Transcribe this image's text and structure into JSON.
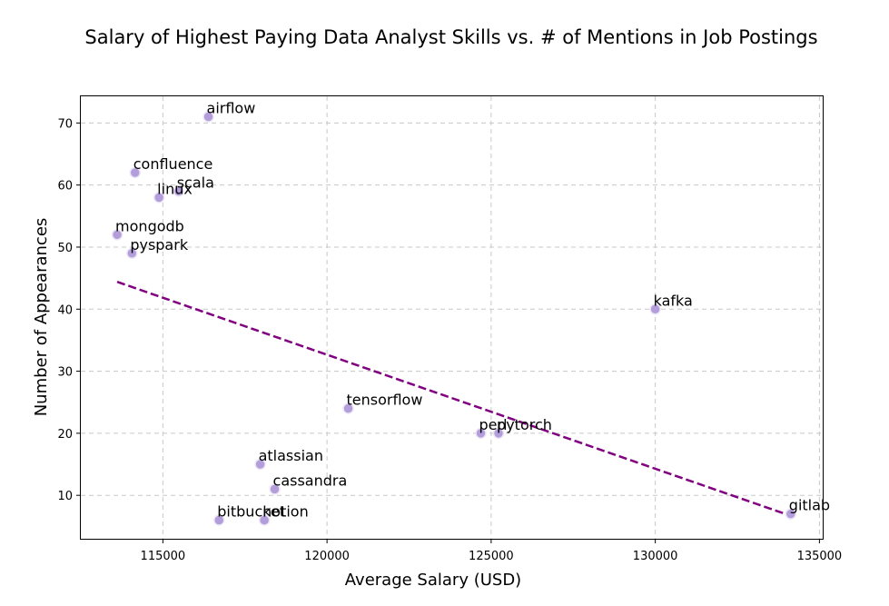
{
  "chart_data": {
    "type": "scatter",
    "title": "Salary of Highest Paying Data Analyst Skills vs. # of Mentions in Job Postings",
    "xlabel": "Average Salary (USD)",
    "ylabel": "Number of Appearances",
    "xlim": [
      112500,
      135100
    ],
    "ylim": [
      3,
      74.3
    ],
    "xticks": [
      115000,
      120000,
      125000,
      130000,
      135000
    ],
    "yticks": [
      10,
      20,
      30,
      40,
      50,
      60,
      70
    ],
    "grid": true,
    "legend": "none",
    "point_color": "#b39ddb",
    "point_edge_color": "#ece7f7",
    "trend_color": "#800080",
    "points": [
      {
        "label": "airflow",
        "x": 116387,
        "y": 71
      },
      {
        "label": "confluence",
        "x": 114153,
        "y": 62
      },
      {
        "label": "scala",
        "x": 115480,
        "y": 59
      },
      {
        "label": "linux",
        "x": 114884,
        "y": 58
      },
      {
        "label": "mongodb",
        "x": 113608,
        "y": 52
      },
      {
        "label": "pyspark",
        "x": 114058,
        "y": 49
      },
      {
        "label": "kafka",
        "x": 129999,
        "y": 40
      },
      {
        "label": "tensorflow",
        "x": 120647,
        "y": 24
      },
      {
        "label": "perl",
        "x": 124686,
        "y": 20
      },
      {
        "label": "pytorch",
        "x": 125226,
        "y": 20
      },
      {
        "label": "atlassian",
        "x": 117966,
        "y": 15
      },
      {
        "label": "cassandra",
        "x": 118407,
        "y": 11
      },
      {
        "label": "bitbucket",
        "x": 116712,
        "y": 6
      },
      {
        "label": "notion",
        "x": 118092,
        "y": 6
      },
      {
        "label": "gitlab",
        "x": 134126,
        "y": 7
      }
    ],
    "trend_line": {
      "x": [
        113608,
        134126
      ],
      "y": [
        44.4,
        6.7
      ]
    }
  }
}
